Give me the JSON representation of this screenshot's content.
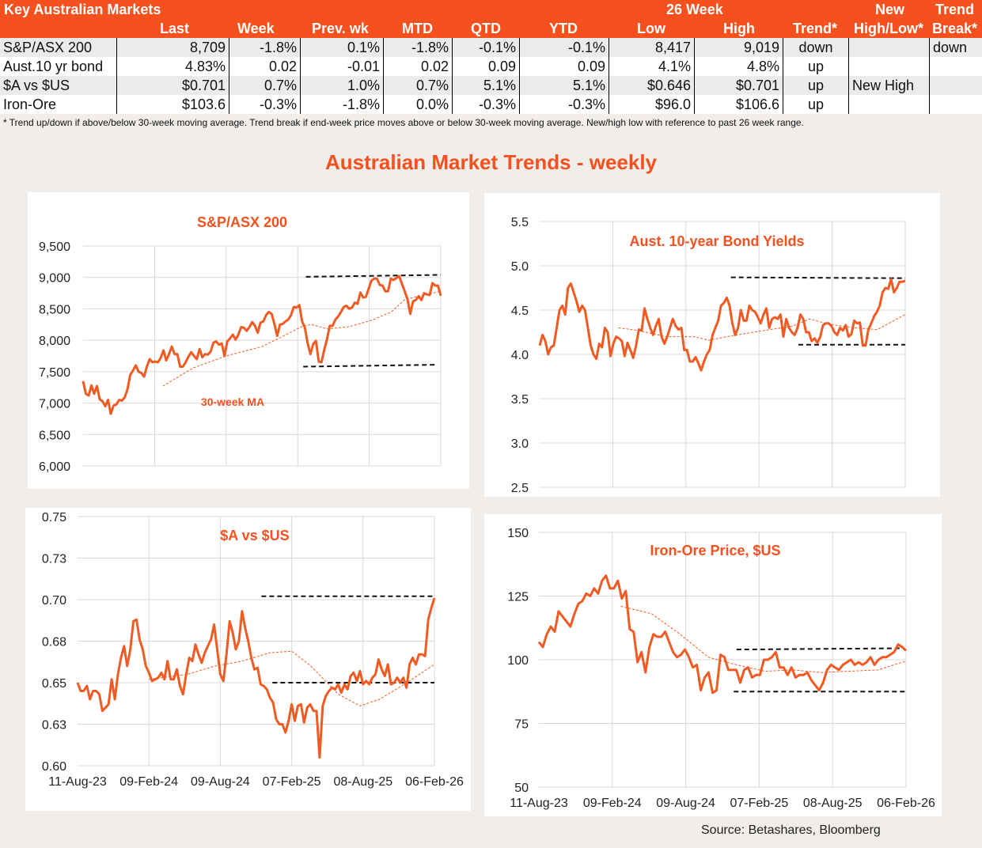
{
  "table": {
    "title": "Key Australian Markets",
    "group_header": "26 Week",
    "new_header_top": "New",
    "break_header_top": "Trend",
    "columns": [
      "Last",
      "Week",
      "Prev. wk",
      "MTD",
      "QTD",
      "YTD",
      "Low",
      "High",
      "Trend*",
      "High/Low*",
      "Break*"
    ],
    "rows": [
      {
        "name": "S&P/ASX 200",
        "last": "8,709",
        "week": "-1.8%",
        "prev": "0.1%",
        "mtd": "-1.8%",
        "qtd": "-0.1%",
        "ytd": "-0.1%",
        "low": "8,417",
        "high": "9,019",
        "trend": "down",
        "newhl": "",
        "brk": "down"
      },
      {
        "name": "Aust.10 yr bond",
        "last": "4.83%",
        "week": "0.02",
        "prev": "-0.01",
        "mtd": "0.02",
        "qtd": "0.09",
        "ytd": "0.09",
        "low": "4.1%",
        "high": "4.8%",
        "trend": "up",
        "newhl": "",
        "brk": ""
      },
      {
        "name": "$A vs $US",
        "last": "$0.701",
        "week": "0.7%",
        "prev": "1.0%",
        "mtd": "0.7%",
        "qtd": "5.1%",
        "ytd": "5.1%",
        "low": "$0.646",
        "high": "$0.701",
        "trend": "up",
        "newhl": "New High",
        "brk": ""
      },
      {
        "name": "Iron-Ore",
        "last": "$103.6",
        "week": "-0.3%",
        "prev": "-1.8%",
        "mtd": "0.0%",
        "qtd": "-0.3%",
        "ytd": "-0.3%",
        "low": "$96.0",
        "high": "$106.6",
        "trend": "up",
        "newhl": "",
        "brk": ""
      }
    ],
    "footnote": "*  Trend up/down if above/below 30-week moving average. Trend break if end-week price moves above or below 30-week moving average.  New/high low with reference to past 26 week range."
  },
  "page_title": "Australian Market Trends - weekly",
  "source": "Source:  Betashares, Bloomberg",
  "colors": {
    "accent": "#f4511e",
    "line": "#f05a23",
    "grid": "#d9d9d9",
    "dash": "#111111"
  },
  "chart_data": [
    {
      "type": "line",
      "title": "S&P/ASX 200",
      "annotation": "30-week MA",
      "x_unit": "weeks since 11-Aug-23",
      "xlim": [
        0,
        130
      ],
      "ylim": [
        6000,
        9500
      ],
      "yticks": [
        6000,
        6500,
        7000,
        7500,
        8000,
        8500,
        9000,
        9500
      ],
      "ytick_labels": [
        "6,000",
        "6,500",
        "7,000",
        "7,500",
        "8,000",
        "8,500",
        "9,000",
        "9,500"
      ],
      "xticks": [
        0,
        26,
        52,
        78,
        104,
        130
      ],
      "xtick_labels": [],
      "series": [
        7350,
        7150,
        7120,
        7280,
        7150,
        7270,
        7060,
        7030,
        6950,
        7050,
        6830,
        6960,
        6980,
        7050,
        7040,
        7090,
        7220,
        7450,
        7520,
        7600,
        7500,
        7480,
        7420,
        7580,
        7700,
        7650,
        7660,
        7650,
        7720,
        7840,
        7680,
        7780,
        7900,
        7780,
        7780,
        7580,
        7580,
        7650,
        7740,
        7810,
        7750,
        7700,
        7860,
        7730,
        7780,
        7770,
        7820,
        7960,
        7980,
        7930,
        7950,
        7750,
        7980,
        8030,
        8090,
        8010,
        8090,
        8210,
        8200,
        8150,
        8210,
        8290,
        8230,
        8120,
        8280,
        8300,
        8400,
        8450,
        8420,
        8260,
        8070,
        8250,
        8260,
        8300,
        8330,
        8400,
        8530,
        8520,
        8560,
        8300,
        8200,
        7950,
        7780,
        7940,
        7990,
        7660,
        7650,
        7850,
        8020,
        8230,
        8230,
        8330,
        8380,
        8450,
        8530,
        8550,
        8500,
        8520,
        8600,
        8580,
        8760,
        8680,
        8690,
        8820,
        8950,
        8980,
        8980,
        8880,
        8870,
        8780,
        8780,
        8980,
        8960,
        8990,
        9020,
        8900,
        8780,
        8650,
        8420,
        8620,
        8640,
        8700,
        8640,
        8750,
        8730,
        8720,
        8910,
        8870,
        8870,
        8709
      ],
      "ma_30wk": [
        [
          29,
          7270
        ],
        [
          40,
          7560
        ],
        [
          52,
          7750
        ],
        [
          65,
          7900
        ],
        [
          72,
          8050
        ],
        [
          80,
          8230
        ],
        [
          83,
          8250
        ],
        [
          89,
          8180
        ],
        [
          97,
          8220
        ],
        [
          105,
          8320
        ],
        [
          112,
          8450
        ],
        [
          117,
          8650
        ],
        [
          130,
          8780
        ]
      ],
      "range_high": [
        [
          81,
          9010
        ],
        [
          130,
          9040
        ]
      ],
      "range_low": [
        [
          80,
          7580
        ],
        [
          128,
          7610
        ]
      ]
    },
    {
      "type": "line",
      "title": "Aust. 10-year Bond Yields",
      "x_unit": "weeks since 11-Aug-23",
      "xlim": [
        0,
        130
      ],
      "ylim": [
        2.5,
        5.5
      ],
      "yticks": [
        2.5,
        3.0,
        3.5,
        4.0,
        4.5,
        5.0,
        5.5
      ],
      "ytick_labels": [
        "2.5",
        "3.0",
        "3.5",
        "4.0",
        "4.5",
        "5.0",
        "5.5"
      ],
      "xticks": [
        0,
        26,
        52,
        78,
        104,
        130
      ],
      "xtick_labels": [],
      "series": [
        4.1,
        4.22,
        4.15,
        4.0,
        4.08,
        4.1,
        4.3,
        4.5,
        4.55,
        4.45,
        4.75,
        4.8,
        4.7,
        4.6,
        4.48,
        4.55,
        4.5,
        4.3,
        4.1,
        4.0,
        3.95,
        4.12,
        4.08,
        4.3,
        4.25,
        3.98,
        4.12,
        4.2,
        4.18,
        4.15,
        3.98,
        4.13,
        4.05,
        3.96,
        4.1,
        4.28,
        4.27,
        4.52,
        4.4,
        4.3,
        4.22,
        4.32,
        4.4,
        4.2,
        4.12,
        4.2,
        4.3,
        4.4,
        4.32,
        4.28,
        4.3,
        4.05,
        4.05,
        3.92,
        3.92,
        3.97,
        3.9,
        3.82,
        3.92,
        4.0,
        4.05,
        4.22,
        4.3,
        4.38,
        4.55,
        4.58,
        4.64,
        4.55,
        4.35,
        4.22,
        4.3,
        4.5,
        4.38,
        4.38,
        4.55,
        4.5,
        4.48,
        4.42,
        4.35,
        4.45,
        4.52,
        4.3,
        4.4,
        4.42,
        4.4,
        4.45,
        4.2,
        4.4,
        4.3,
        4.25,
        4.22,
        4.3,
        4.45,
        4.4,
        4.25,
        4.25,
        4.15,
        4.18,
        4.13,
        4.2,
        4.33,
        4.35,
        4.35,
        4.32,
        4.25,
        4.22,
        4.3,
        4.27,
        4.33,
        4.2,
        4.23,
        4.38,
        4.35,
        4.36,
        4.1,
        4.1,
        4.28,
        4.35,
        4.43,
        4.48,
        4.55,
        4.7,
        4.75,
        4.74,
        4.85,
        4.7,
        4.75,
        4.82,
        4.82,
        4.83
      ],
      "ma_30wk": [
        [
          28,
          4.3
        ],
        [
          35,
          4.27
        ],
        [
          45,
          4.2
        ],
        [
          55,
          4.2
        ],
        [
          60,
          4.16
        ],
        [
          70,
          4.22
        ],
        [
          80,
          4.27
        ],
        [
          90,
          4.32
        ],
        [
          96,
          4.4
        ],
        [
          103,
          4.34
        ],
        [
          112,
          4.3
        ],
        [
          120,
          4.28
        ],
        [
          130,
          4.45
        ]
      ],
      "range_high": [
        [
          68,
          4.87
        ],
        [
          130,
          4.86
        ]
      ],
      "range_low": [
        [
          92,
          4.11
        ],
        [
          130,
          4.11
        ]
      ]
    },
    {
      "type": "line",
      "title": "$A vs $US",
      "x_unit": "weeks since 11-Aug-23",
      "xlim": [
        0,
        130
      ],
      "ylim": [
        0.6,
        0.75
      ],
      "yticks": [
        0.6,
        0.625,
        0.65,
        0.675,
        0.7,
        0.725,
        0.75
      ],
      "ytick_labels": [
        "0.60",
        "0.63",
        "0.65",
        "0.68",
        "0.70",
        "0.73",
        "0.75"
      ],
      "xticks": [
        0,
        26,
        52,
        78,
        104,
        130
      ],
      "xtick_labels": [
        "11-Aug-23",
        "09-Feb-24",
        "09-Aug-24",
        "07-Feb-25",
        "08-Aug-25",
        "06-Feb-26"
      ],
      "series": [
        0.65,
        0.645,
        0.645,
        0.648,
        0.64,
        0.645,
        0.645,
        0.643,
        0.633,
        0.635,
        0.637,
        0.652,
        0.64,
        0.655,
        0.665,
        0.672,
        0.66,
        0.67,
        0.687,
        0.688,
        0.676,
        0.67,
        0.66,
        0.656,
        0.651,
        0.652,
        0.653,
        0.656,
        0.652,
        0.663,
        0.652,
        0.652,
        0.658,
        0.648,
        0.643,
        0.655,
        0.665,
        0.663,
        0.673,
        0.667,
        0.662,
        0.668,
        0.672,
        0.676,
        0.685,
        0.67,
        0.655,
        0.651,
        0.667,
        0.687,
        0.68,
        0.67,
        0.675,
        0.693,
        0.683,
        0.675,
        0.665,
        0.658,
        0.659,
        0.649,
        0.648,
        0.646,
        0.641,
        0.638,
        0.628,
        0.625,
        0.625,
        0.62,
        0.627,
        0.637,
        0.627,
        0.636,
        0.637,
        0.626,
        0.635,
        0.637,
        0.633,
        0.633,
        0.605,
        0.636,
        0.642,
        0.645,
        0.647,
        0.646,
        0.649,
        0.644,
        0.649,
        0.646,
        0.654,
        0.656,
        0.651,
        0.657,
        0.649,
        0.651,
        0.649,
        0.653,
        0.655,
        0.664,
        0.658,
        0.654,
        0.661,
        0.649,
        0.65,
        0.653,
        0.65,
        0.653,
        0.647,
        0.661,
        0.665,
        0.661,
        0.667,
        0.667,
        0.666,
        0.688,
        0.695,
        0.701
      ],
      "ma_30wk": [
        [
          26,
          0.652
        ],
        [
          40,
          0.655
        ],
        [
          50,
          0.66
        ],
        [
          60,
          0.663
        ],
        [
          70,
          0.668
        ],
        [
          78,
          0.669
        ],
        [
          85,
          0.66
        ],
        [
          95,
          0.643
        ],
        [
          103,
          0.636
        ],
        [
          110,
          0.64
        ],
        [
          120,
          0.65
        ],
        [
          130,
          0.661
        ]
      ],
      "range_high": [
        [
          67,
          0.702
        ],
        [
          130,
          0.702
        ]
      ],
      "range_low": [
        [
          71,
          0.65
        ],
        [
          130,
          0.65
        ]
      ]
    },
    {
      "type": "line",
      "title": "Iron-Ore Price, $US",
      "x_unit": "weeks since 11-Aug-23",
      "xlim": [
        0,
        130
      ],
      "ylim": [
        50,
        150
      ],
      "yticks": [
        50,
        75,
        100,
        125,
        150
      ],
      "ytick_labels": [
        "50",
        "75",
        "100",
        "125",
        "150"
      ],
      "xticks": [
        0,
        26,
        52,
        78,
        104,
        130
      ],
      "xtick_labels": [
        "11-Aug-23",
        "09-Feb-24",
        "09-Aug-24",
        "07-Feb-25",
        "08-Aug-25",
        "06-Feb-26"
      ],
      "series": [
        107,
        105,
        110,
        113,
        111,
        119,
        117,
        115,
        113,
        118,
        122,
        123,
        126,
        125,
        128,
        126,
        131,
        133,
        128,
        128,
        131,
        124,
        127,
        112,
        111,
        99,
        103,
        95,
        105,
        110,
        109,
        109,
        111,
        107,
        103,
        101,
        102,
        104,
        101,
        97,
        98,
        88,
        93,
        95,
        87,
        88,
        102,
        101,
        96,
        96,
        96,
        91,
        96,
        97,
        93,
        94,
        94,
        100,
        100,
        101,
        103,
        97,
        97,
        94,
        97,
        93,
        94,
        94,
        95,
        92,
        90,
        88,
        91,
        96,
        98,
        97,
        96,
        98,
        99,
        100,
        98,
        99,
        98,
        99,
        101,
        98,
        100,
        101,
        101,
        102,
        103,
        106,
        105,
        103.6
      ],
      "ma_30wk": [
        [
          29,
          121
        ],
        [
          40,
          118
        ],
        [
          50,
          110
        ],
        [
          60,
          101
        ],
        [
          70,
          98
        ],
        [
          80,
          95.5
        ],
        [
          90,
          96
        ],
        [
          100,
          95
        ],
        [
          110,
          95.5
        ],
        [
          120,
          96
        ],
        [
          130,
          99.5
        ]
      ],
      "range_high": [
        [
          70,
          104
        ],
        [
          128,
          104.5
        ]
      ],
      "range_low": [
        [
          69,
          87.5
        ],
        [
          130,
          87.5
        ]
      ]
    }
  ]
}
